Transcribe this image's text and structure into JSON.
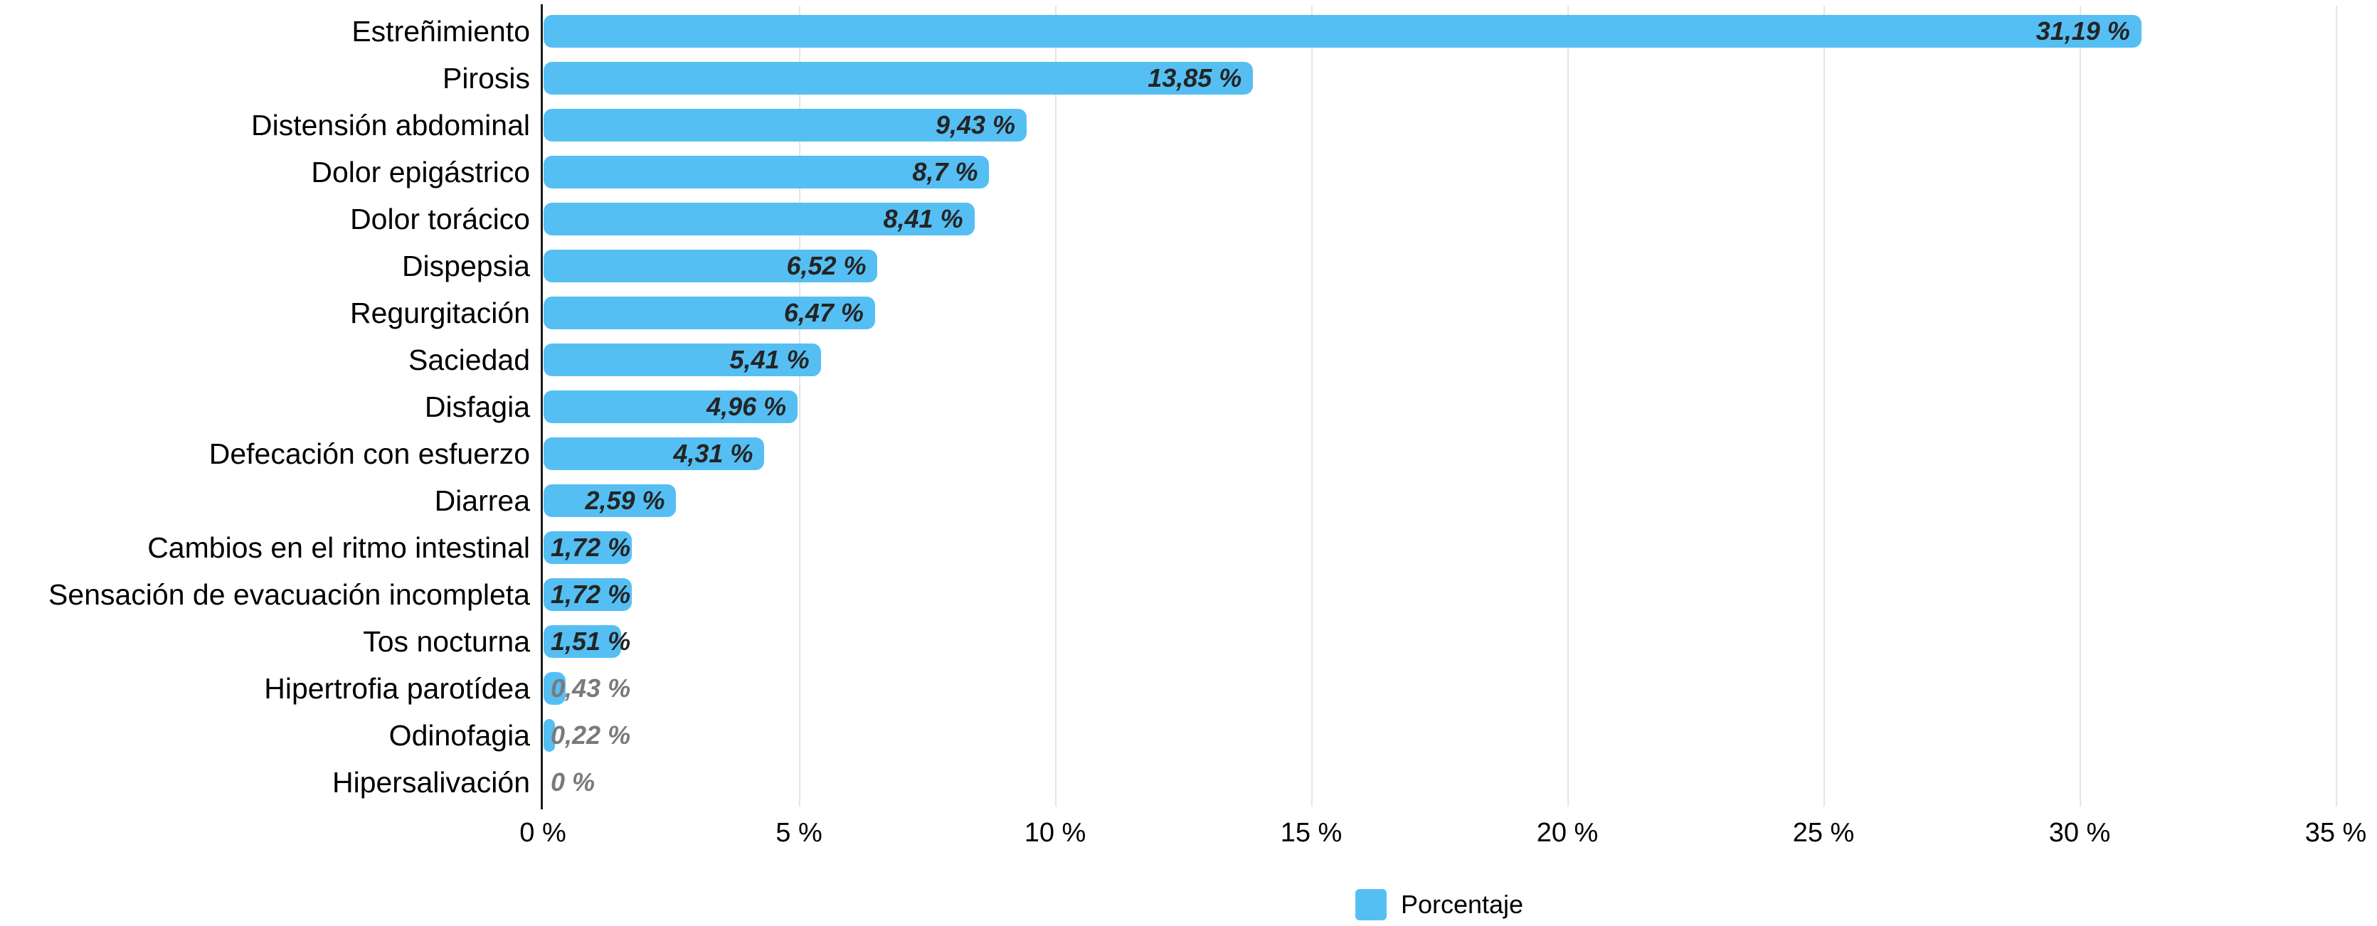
{
  "chart_data": {
    "type": "bar",
    "orientation": "horizontal",
    "title": "",
    "categories": [
      "Estreñimiento",
      "Pirosis",
      "Distensión abdominal",
      "Dolor epigástrico",
      "Dolor torácico",
      "Dispepsia",
      "Regurgitación",
      "Saciedad",
      "Disfagia",
      "Defecación con esfuerzo",
      "Diarrea",
      "Cambios en el ritmo intestinal",
      "Sensación de evacuación incompleta",
      "Tos nocturna",
      "Hipertrofia parotídea",
      "Odinofagia",
      "Hipersalivación"
    ],
    "values": [
      31.19,
      13.85,
      9.43,
      8.7,
      8.41,
      6.52,
      6.47,
      5.41,
      4.96,
      4.31,
      2.59,
      1.72,
      1.72,
      1.51,
      0.43,
      0.22,
      0
    ],
    "value_labels": [
      "31,19 %",
      "13,85 %",
      "9,43 %",
      "8,7 %",
      "8,41 %",
      "6,52 %",
      "6,47 %",
      "5,41 %",
      "4,96 %",
      "4,31 %",
      "2,59 %",
      "1,72 %",
      "1,72 %",
      "1,51 %",
      "0,43 %",
      "0,22 %",
      "0 %"
    ],
    "series_name": "Porcentaje",
    "xlabel": "",
    "ylabel": "",
    "xlim": [
      0,
      35
    ],
    "x_tick_values": [
      0,
      5,
      10,
      15,
      20,
      25,
      30,
      35
    ],
    "x_tick_labels": [
      "0 %",
      "5 %",
      "10 %",
      "15 %",
      "20 %",
      "25 %",
      "30 %",
      "35 %"
    ],
    "grid": "vertical-on",
    "legend": {
      "position": "bottom-center",
      "items": [
        {
          "label": "Porcentaje",
          "color": "#55BFF4"
        }
      ]
    },
    "bar_color": "#55BFF4",
    "colors": {
      "value_label_dark": "#242424",
      "value_label_gray": "#7a7a7a",
      "axis_line": "#1c1c1c",
      "gridline": "#e5e5e5",
      "text": "#000000",
      "background": "#ffffff"
    }
  }
}
